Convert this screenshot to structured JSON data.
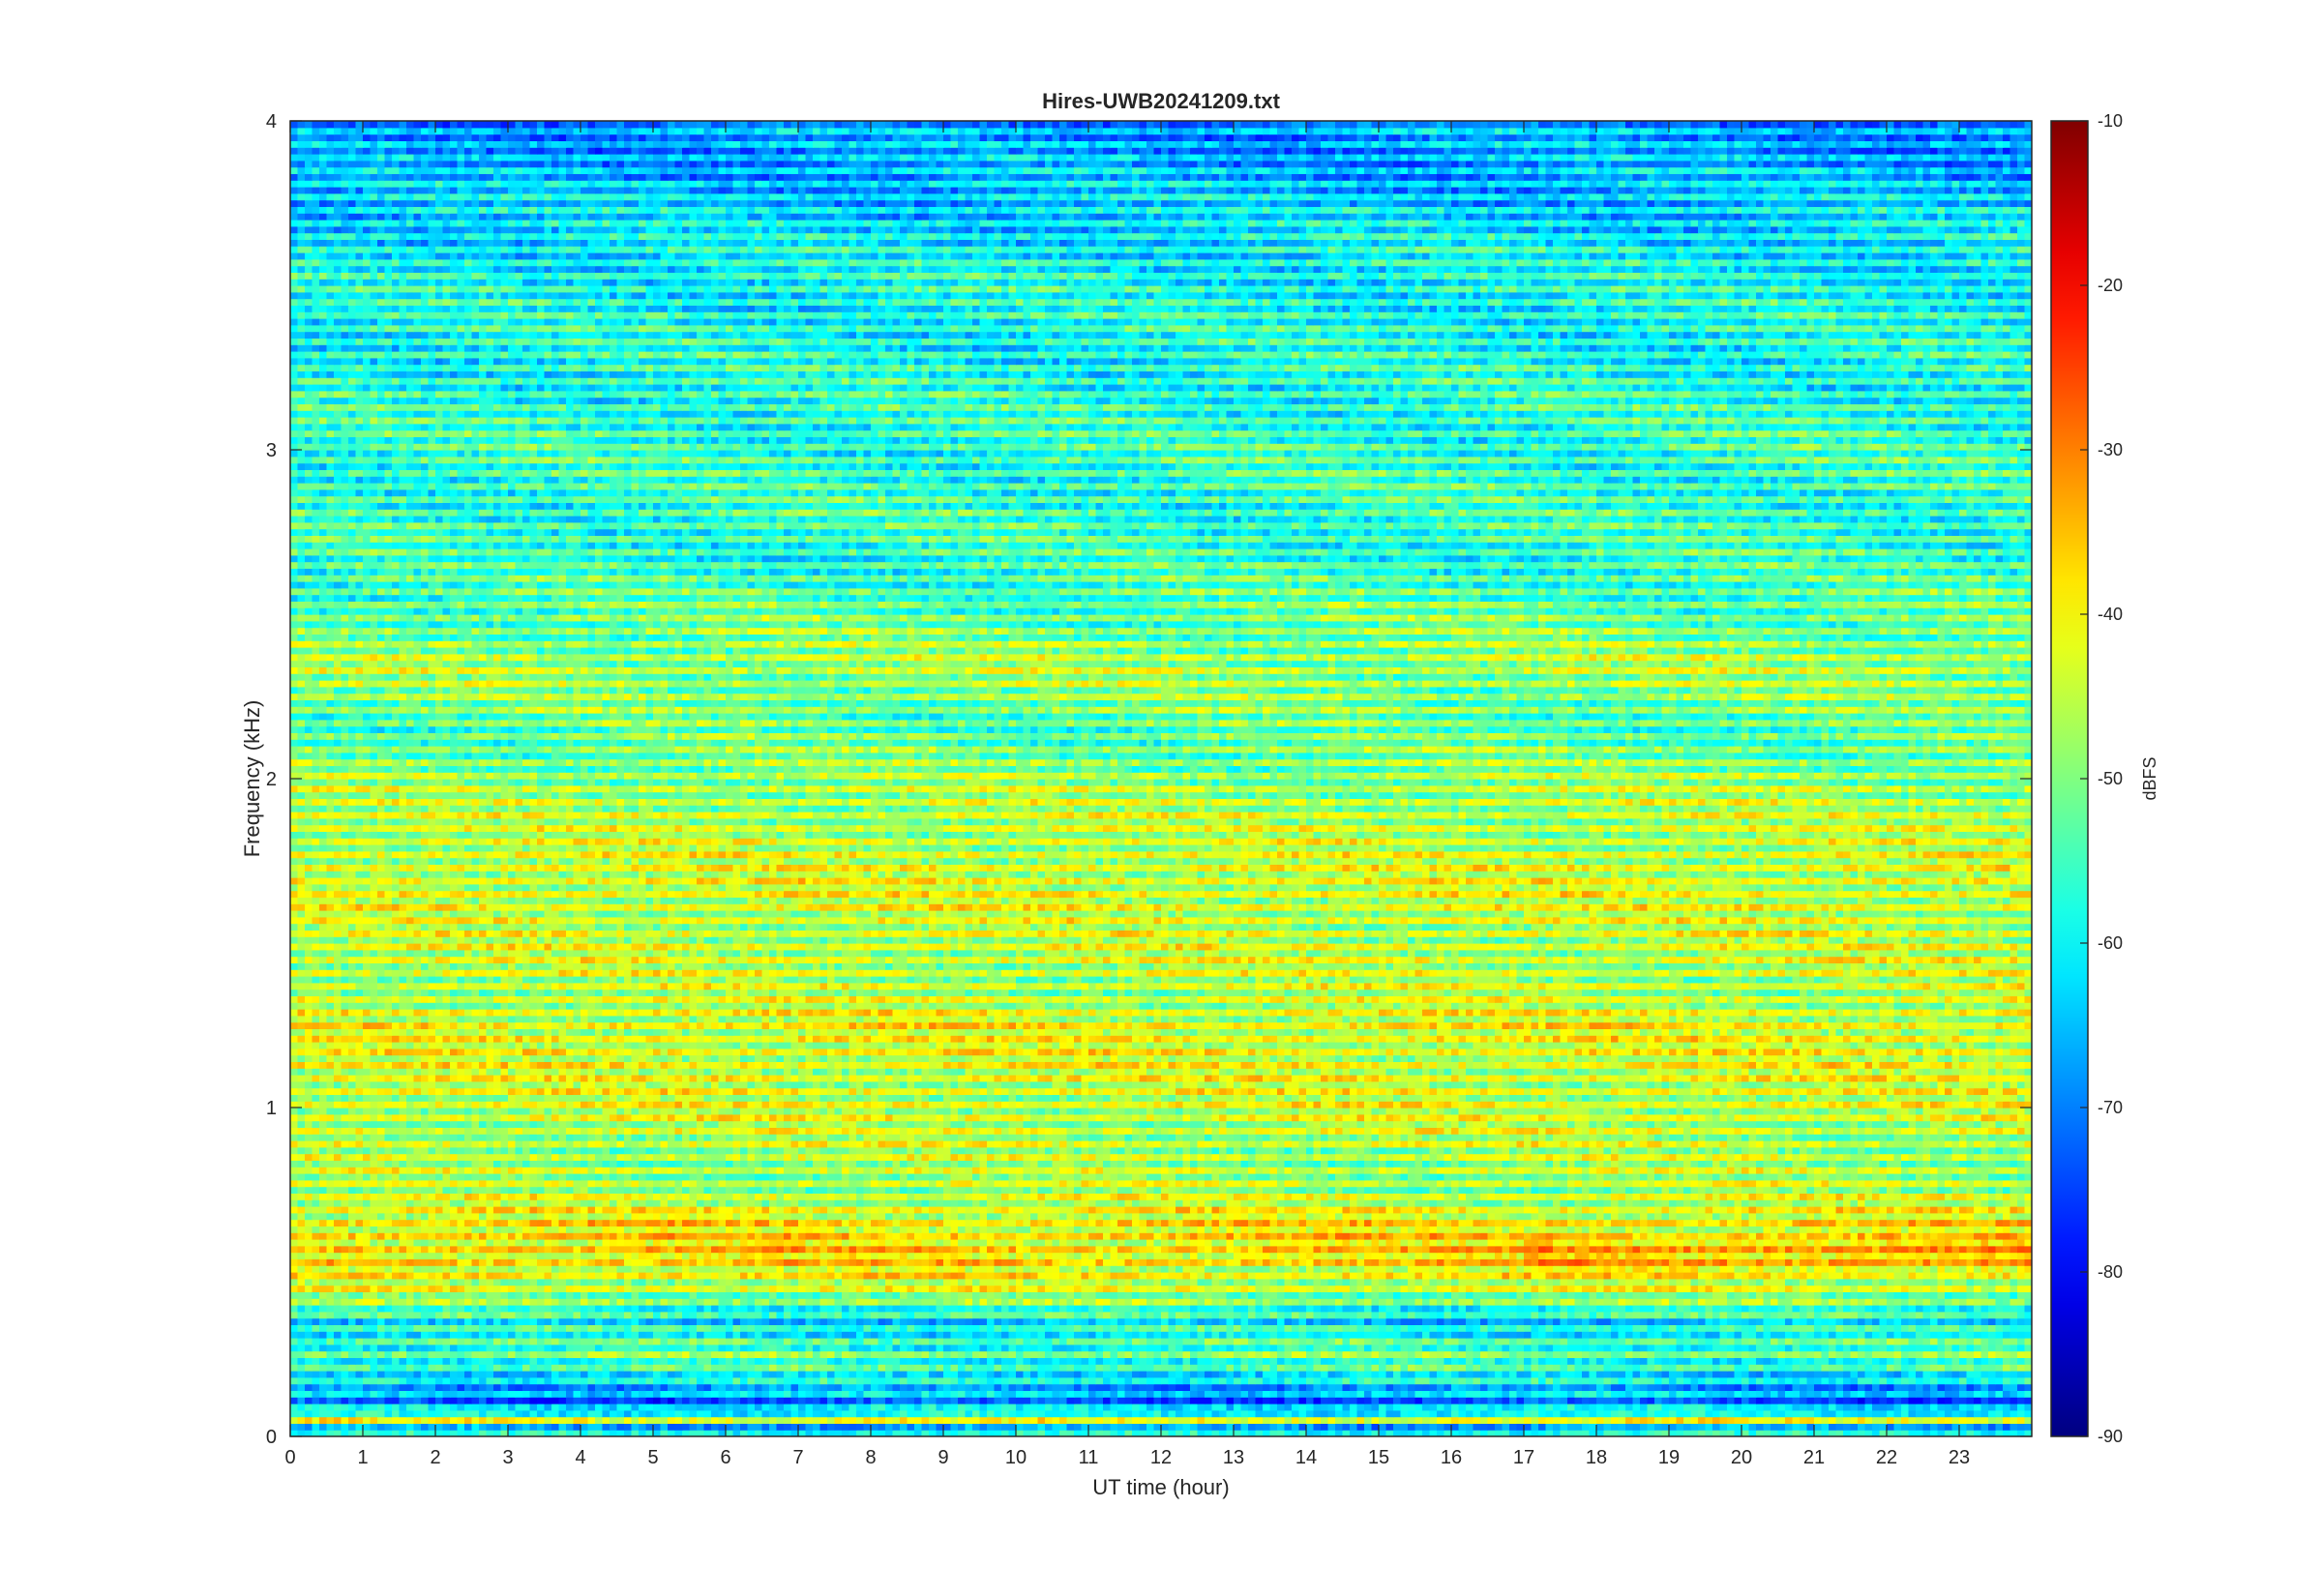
{
  "chart_data": {
    "type": "heatmap",
    "title": "Hires-UWB20241209.txt",
    "xlabel": "UT time (hour)",
    "ylabel": "Frequency (kHz)",
    "xlim": [
      0,
      24
    ],
    "ylim": [
      0,
      4
    ],
    "x_ticks": [
      "0",
      "1",
      "2",
      "3",
      "4",
      "5",
      "6",
      "7",
      "8",
      "9",
      "10",
      "11",
      "12",
      "13",
      "14",
      "15",
      "16",
      "17",
      "18",
      "19",
      "20",
      "21",
      "22",
      "23"
    ],
    "y_ticks": [
      "0",
      "1",
      "2",
      "3",
      "4"
    ],
    "colorbar": {
      "label": "dBFS",
      "range": [
        -90,
        -10
      ],
      "ticks": [
        "-90",
        "-80",
        "-70",
        "-60",
        "-50",
        "-40",
        "-30",
        "-20",
        "-10"
      ],
      "colormap": "jet"
    },
    "colormap_stops": [
      "#000080",
      "#0000ff",
      "#0080ff",
      "#00ffff",
      "#80ff80",
      "#ffff00",
      "#ff8000",
      "#ff0000",
      "#800000"
    ],
    "grid": false,
    "band_levels_dbfs": [
      {
        "f": 0.03,
        "level": -62
      },
      {
        "f": 0.05,
        "level": -44
      },
      {
        "f": 0.1,
        "level": -70
      },
      {
        "f": 0.2,
        "level": -57
      },
      {
        "f": 0.25,
        "level": -52
      },
      {
        "f": 0.35,
        "level": -60
      },
      {
        "f": 0.45,
        "level": -44
      },
      {
        "f": 0.55,
        "level": -37
      },
      {
        "f": 0.65,
        "level": -39
      },
      {
        "f": 0.75,
        "level": -46
      },
      {
        "f": 0.85,
        "level": -46
      },
      {
        "f": 0.95,
        "level": -44
      },
      {
        "f": 1.05,
        "level": -43
      },
      {
        "f": 1.15,
        "level": -42
      },
      {
        "f": 1.25,
        "level": -41
      },
      {
        "f": 1.35,
        "level": -45
      },
      {
        "f": 1.45,
        "level": -44
      },
      {
        "f": 1.55,
        "level": -44
      },
      {
        "f": 1.65,
        "level": -42
      },
      {
        "f": 1.75,
        "level": -43
      },
      {
        "f": 1.85,
        "level": -45
      },
      {
        "f": 1.95,
        "level": -46
      },
      {
        "f": 2.15,
        "level": -52
      },
      {
        "f": 2.35,
        "level": -46
      },
      {
        "f": 2.45,
        "level": -50
      },
      {
        "f": 2.65,
        "level": -55
      },
      {
        "f": 2.85,
        "level": -55
      },
      {
        "f": 3.05,
        "level": -55
      },
      {
        "f": 3.25,
        "level": -57
      },
      {
        "f": 3.55,
        "level": -58
      },
      {
        "f": 3.9,
        "level": -66
      }
    ]
  }
}
